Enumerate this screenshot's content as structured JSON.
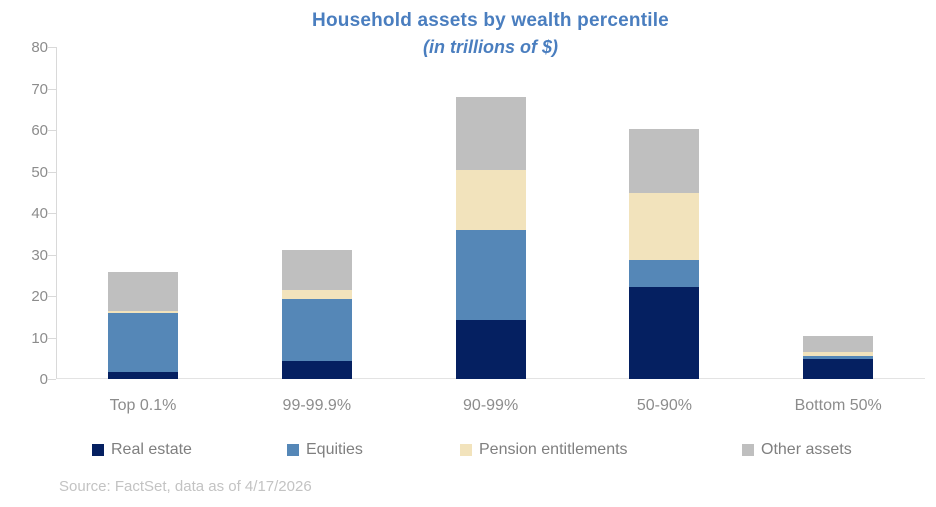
{
  "chart_data": {
    "type": "bar",
    "stacked": true,
    "title": "Household assets by wealth percentile",
    "subtitle": "(in trillions of $)",
    "categories": [
      "Top 0.1%",
      "99-99.9%",
      "90-99%",
      "50-90%",
      "Bottom 50%"
    ],
    "series": [
      {
        "name": "Real estate",
        "color": "#052061",
        "values": [
          1.8,
          4.3,
          14.3,
          22.2,
          4.8
        ]
      },
      {
        "name": "Equities",
        "color": "#5587b7",
        "values": [
          14.0,
          15.0,
          21.6,
          6.5,
          0.8
        ]
      },
      {
        "name": "Pension entitlements",
        "color": "#f2e3bc",
        "values": [
          0.6,
          2.2,
          14.4,
          16.1,
          0.9
        ]
      },
      {
        "name": "Other assets",
        "color": "#bfbfbf",
        "values": [
          9.3,
          9.7,
          17.7,
          15.4,
          3.8
        ]
      }
    ],
    "totals": [
      25.7,
      31.2,
      68.0,
      60.2,
      10.3
    ],
    "ylim": [
      0,
      80
    ],
    "yticks": [
      0,
      10,
      20,
      30,
      40,
      50,
      60,
      70,
      80
    ],
    "grid": false,
    "legend_position": "bottom",
    "title_color": "#4a7ebf",
    "axis_text_color": "#8c8c8c",
    "axis_line_color": "#d9d9d9"
  },
  "footer": {
    "source": "Source: FactSet, data as of 4/17/2026"
  }
}
